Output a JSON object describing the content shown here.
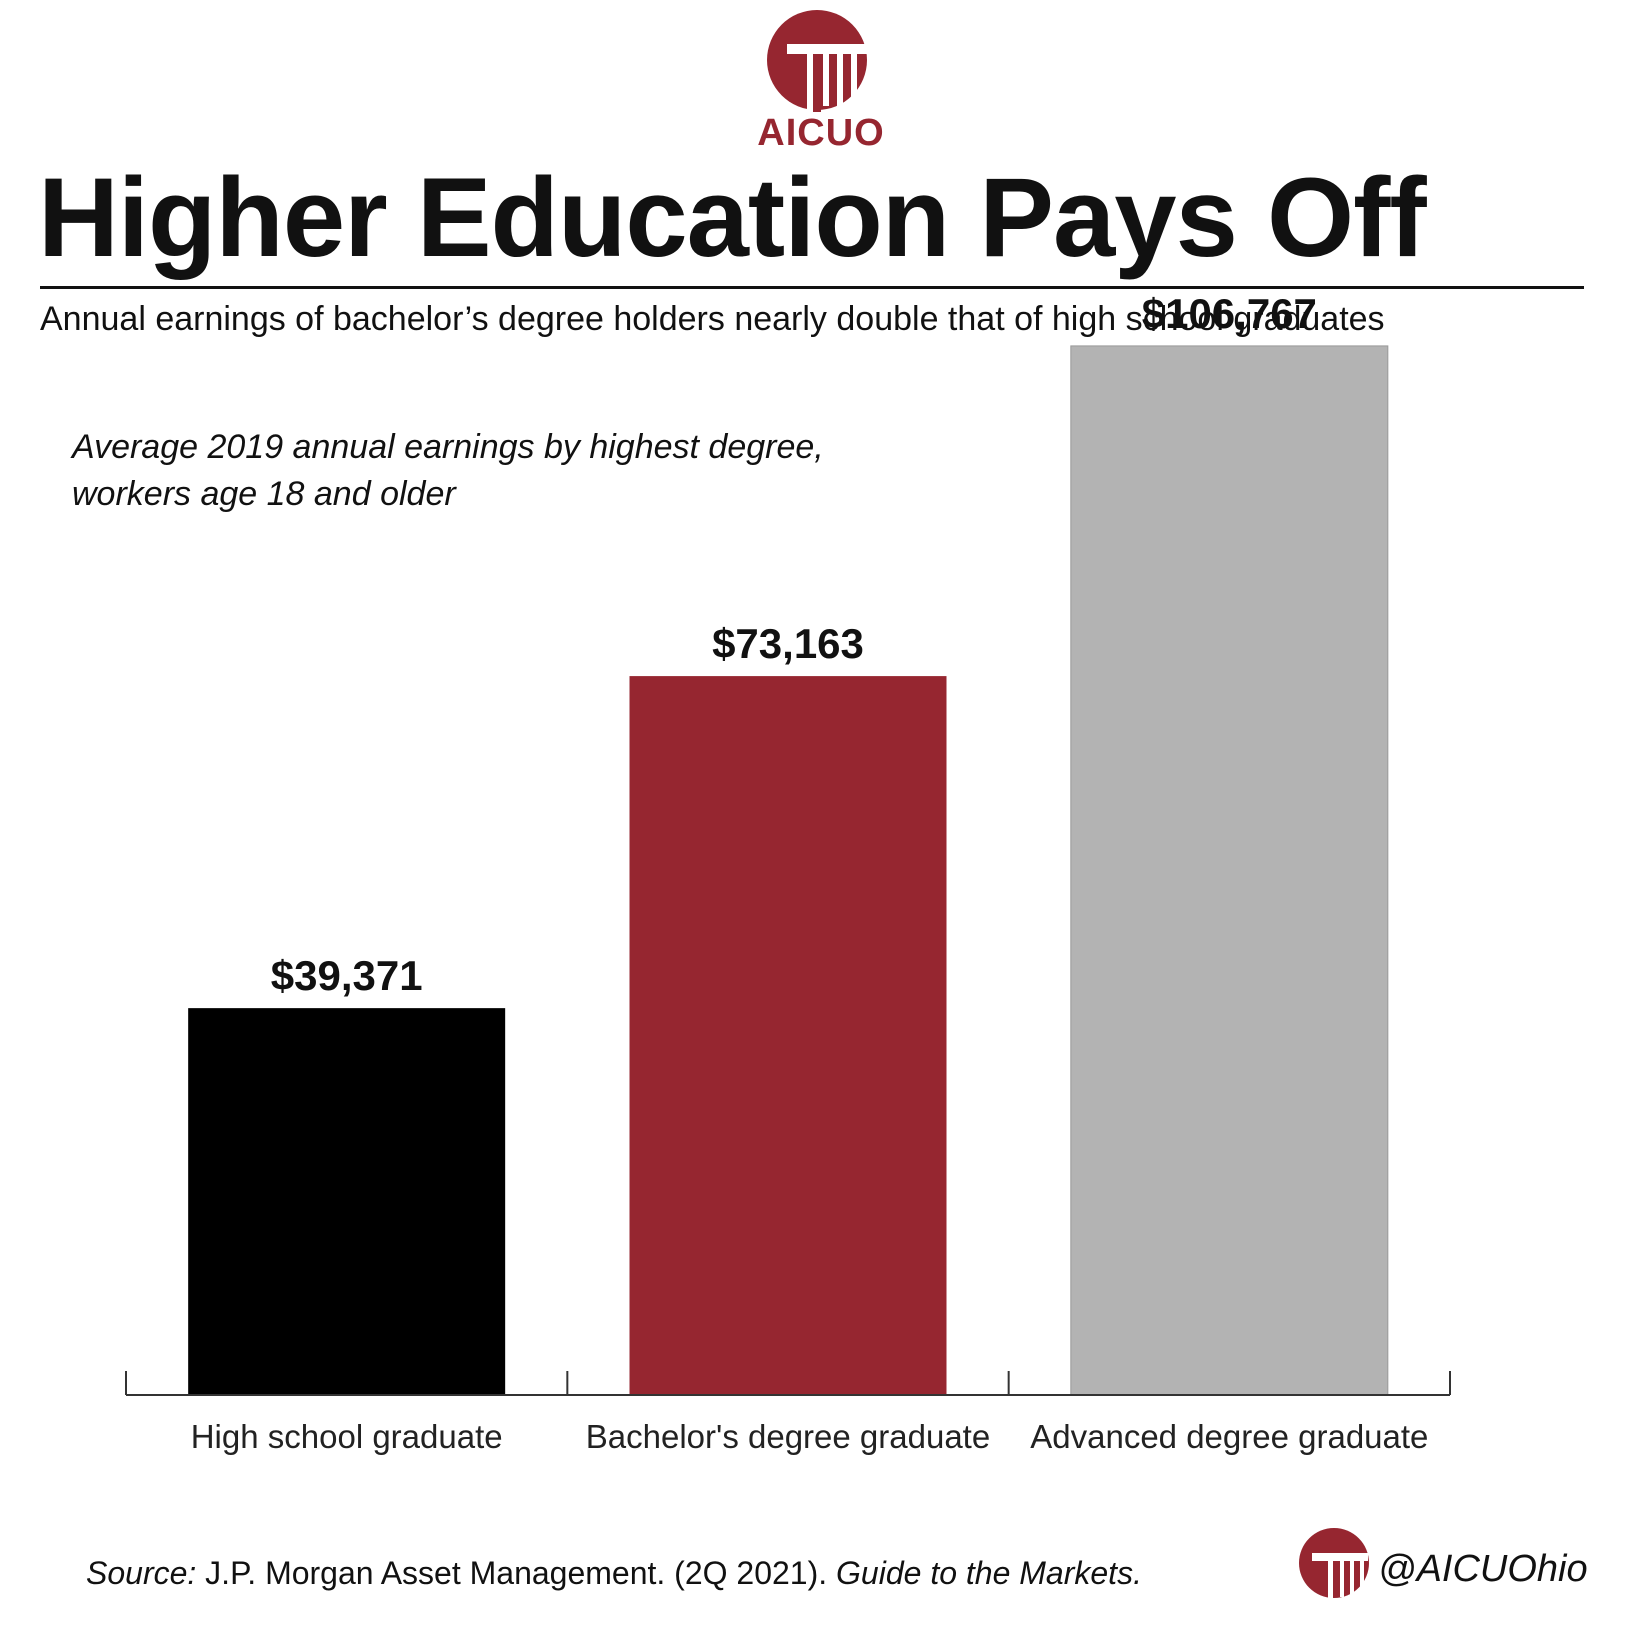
{
  "header": {
    "logo_text": "AICUO",
    "logo_icon": "column-pillar-logo-icon",
    "title": "Higher Education Pays Off",
    "subtitle": "Annual earnings of bachelor’s degree holders nearly double that of high school graduates"
  },
  "chart_data": {
    "type": "bar",
    "note_lines": [
      "Average 2019 annual earnings by highest degree,",
      "workers age 18 and older"
    ],
    "categories": [
      "High school graduate",
      "Bachelor's degree graduate",
      "Advanced degree graduate"
    ],
    "values": [
      39371,
      73163,
      106767
    ],
    "data_labels": [
      "$39,371",
      "$73,163",
      "$106,767"
    ],
    "colors": [
      "#000000",
      "#962630",
      "#b3b3b3"
    ],
    "ylim": [
      0,
      115000
    ],
    "grid": false,
    "legend": "none"
  },
  "footer": {
    "source_label": "Source:",
    "source_text": " J.P. Morgan Asset Management. (2Q 2021). ",
    "source_title": "Guide to the Markets.",
    "handle": "@AICUOhio"
  },
  "colors": {
    "brand": "#962630",
    "bar_gray": "#b3b3b3",
    "bar_black": "#000000"
  }
}
